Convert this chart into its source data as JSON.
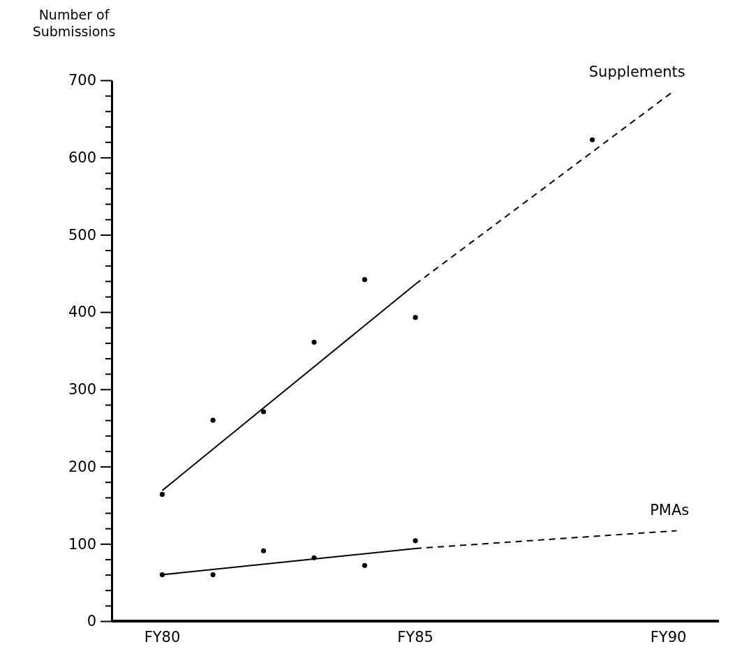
{
  "chart_data": {
    "type": "scatter",
    "ylabel": "Number of Submissions",
    "xlim": [
      "1979",
      "1991"
    ],
    "xticks": [
      {
        "value": "1980",
        "label": "FY80"
      },
      {
        "value": "1985",
        "label": "FY85"
      },
      {
        "value": "1990",
        "label": "FY90"
      }
    ],
    "ylim": [
      0,
      700
    ],
    "yticks": [
      0,
      {
        "value": 20,
        "label": null
      },
      {
        "value": 40,
        "label": null
      },
      {
        "value": 60,
        "label": null
      },
      {
        "value": 80,
        "label": null
      },
      100,
      {
        "value": 120,
        "label": null
      },
      {
        "value": 140,
        "label": null
      },
      {
        "value": 160,
        "label": null
      },
      {
        "value": 180,
        "label": null
      },
      200,
      {
        "value": 220,
        "label": null
      },
      {
        "value": 240,
        "label": null
      },
      {
        "value": 260,
        "label": null
      },
      {
        "value": 280,
        "label": null
      },
      300,
      {
        "value": 320,
        "label": null
      },
      {
        "value": 340,
        "label": null
      },
      {
        "value": 360,
        "label": null
      },
      {
        "value": 380,
        "label": null
      },
      400,
      {
        "value": 420,
        "label": null
      },
      {
        "value": 440,
        "label": null
      },
      {
        "value": 460,
        "label": null
      },
      {
        "value": 480,
        "label": null
      },
      500,
      {
        "value": 520,
        "label": null
      },
      {
        "value": 540,
        "label": null
      },
      {
        "value": 560,
        "label": null
      },
      {
        "value": 580,
        "label": null
      },
      600,
      {
        "value": 620,
        "label": null
      },
      {
        "value": 640,
        "label": null
      },
      {
        "value": 660,
        "label": null
      },
      {
        "value": 680,
        "label": null
      },
      700
    ],
    "grid": false,
    "marker": "circle",
    "series": [
      {
        "color": "#000000",
        "x": [
          "1980",
          "1981",
          "1982",
          "1983",
          "1984",
          "1985",
          "1988-07"
        ],
        "values": [
          164,
          260,
          271,
          361,
          442,
          393,
          623
        ]
      },
      {
        "color": "#000000",
        "x": [
          "1980",
          "1981",
          "1982",
          "1983",
          "1984",
          "1985"
        ],
        "values": [
          60,
          60,
          91,
          82,
          72,
          104
        ]
      },
      {
        "type": "line",
        "color": "#000000",
        "line_style": "solid",
        "marker": "none",
        "x": [
          "1980",
          "1985"
        ],
        "values": [
          169,
          436
        ]
      },
      {
        "type": "line",
        "name": "Supplements",
        "color": "#000000",
        "line_style": "dashed",
        "marker": "none",
        "x": [
          "1985",
          "1990-02"
        ],
        "values": [
          436,
          685
        ]
      },
      {
        "type": "line",
        "color": "#000000",
        "line_style": "solid",
        "marker": "none",
        "x": [
          "1980",
          "1985"
        ],
        "values": [
          60,
          94
        ]
      },
      {
        "type": "line",
        "name": "PMAs",
        "color": "#000000",
        "line_style": "dashed",
        "marker": "none",
        "x": [
          "1985",
          "1990-03"
        ],
        "values": [
          94,
          117
        ]
      }
    ]
  }
}
